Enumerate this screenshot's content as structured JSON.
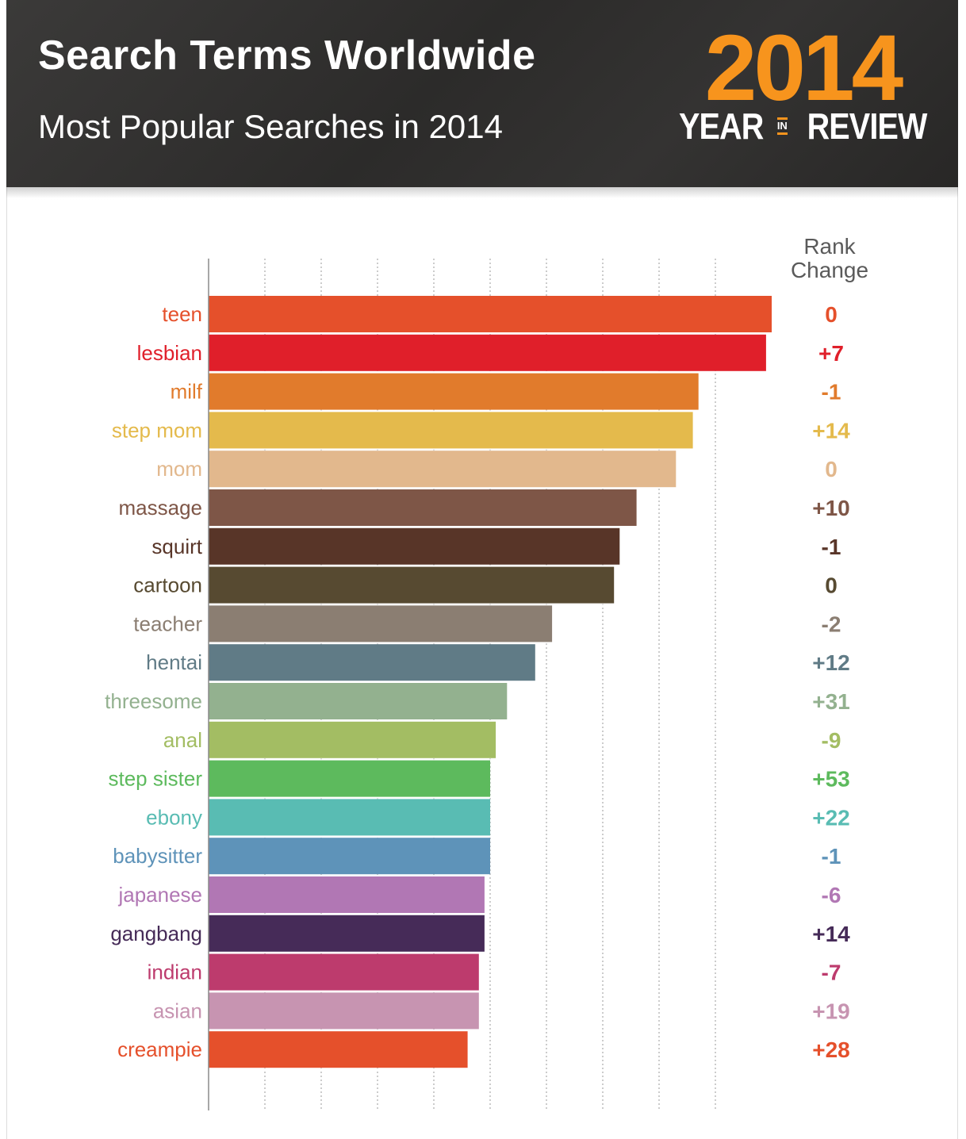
{
  "header": {
    "title": "Search Terms Worldwide",
    "subtitle": "Most Popular Searches in 2014",
    "badge": {
      "year": "2014",
      "year_word": "YEAR",
      "in_word": "IN",
      "review_word": "REVIEW"
    }
  },
  "colors": {
    "header_bg": "#2f2e2d",
    "badge_accent": "#f7941d"
  },
  "chart_data": {
    "type": "bar",
    "orientation": "horizontal",
    "grid": true,
    "xlim": [
      0,
      100
    ],
    "categories": [
      "teen",
      "lesbian",
      "milf",
      "step mom",
      "mom",
      "massage",
      "squirt",
      "cartoon",
      "teacher",
      "hentai",
      "threesome",
      "anal",
      "step sister",
      "ebony",
      "babysitter",
      "japanese",
      "gangbang",
      "indian",
      "asian",
      "creampie"
    ],
    "values": [
      100,
      99,
      87,
      86,
      83,
      76,
      73,
      72,
      61,
      58,
      53,
      51,
      50,
      50,
      50,
      49,
      49,
      48,
      48,
      46
    ],
    "colors": [
      "#e5502b",
      "#e01f2a",
      "#e17b2c",
      "#e4ba4c",
      "#e2b88d",
      "#7e5647",
      "#583528",
      "#574a31",
      "#8b7e72",
      "#607b86",
      "#93b18f",
      "#a3bd63",
      "#5dba5d",
      "#59bcb3",
      "#5e93b9",
      "#b177b4",
      "#462b58",
      "#bd3b6d",
      "#c794b1",
      "#e5502b"
    ],
    "rank_change_header": "Rank Change",
    "rank_change": [
      "0",
      "+7",
      "-1",
      "+14",
      "0",
      "+10",
      "-1",
      "0",
      "-2",
      "+12",
      "+31",
      "-9",
      "+53",
      "+22",
      "-1",
      "-6",
      "+14",
      "-7",
      "+19",
      "+28"
    ]
  }
}
